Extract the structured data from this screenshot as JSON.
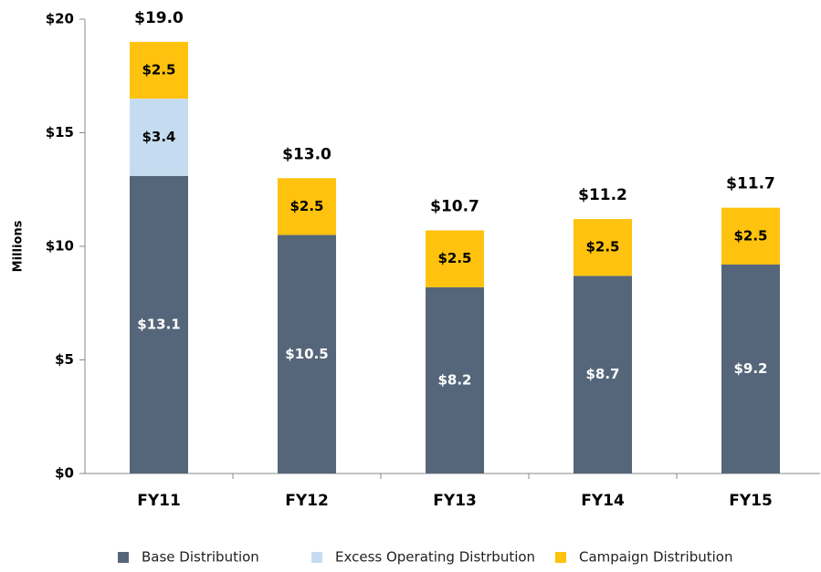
{
  "chart_data": {
    "type": "stacked_bar",
    "ylabel": "Millions",
    "categories": [
      "FY11",
      "FY12",
      "FY13",
      "FY14",
      "FY15"
    ],
    "series": [
      {
        "name": "Base Distribution",
        "color": "#56667a",
        "values": [
          13.1,
          10.5,
          8.2,
          8.7,
          9.2
        ],
        "value_labels": [
          "$13.1",
          "$10.5",
          "$8.2",
          "$8.7",
          "$9.2"
        ]
      },
      {
        "name": "Excess Operating Distrbution",
        "color": "#c5dcf0",
        "values": [
          3.4,
          null,
          null,
          null,
          null
        ],
        "value_labels": [
          "$3.4",
          null,
          null,
          null,
          null
        ]
      },
      {
        "name": "Campaign Distribution",
        "color": "#ffc20e",
        "values": [
          2.5,
          2.5,
          2.5,
          2.5,
          2.5
        ],
        "value_labels": [
          "$2.5",
          "$2.5",
          "$2.5",
          "$2.5",
          "$2.5"
        ]
      }
    ],
    "totals": [
      19.0,
      13.0,
      10.7,
      11.2,
      11.7
    ],
    "total_labels": [
      "$19.0",
      "$13.0",
      "$10.7",
      "$11.2",
      "$11.7"
    ],
    "ylim": [
      0,
      20
    ],
    "yticks": [
      {
        "value": 0,
        "label": "$0"
      },
      {
        "value": 5,
        "label": "$5"
      },
      {
        "value": 10,
        "label": "$10"
      },
      {
        "value": 15,
        "label": "$15"
      },
      {
        "value": 20,
        "label": "$20"
      }
    ],
    "legend": "bottom"
  }
}
